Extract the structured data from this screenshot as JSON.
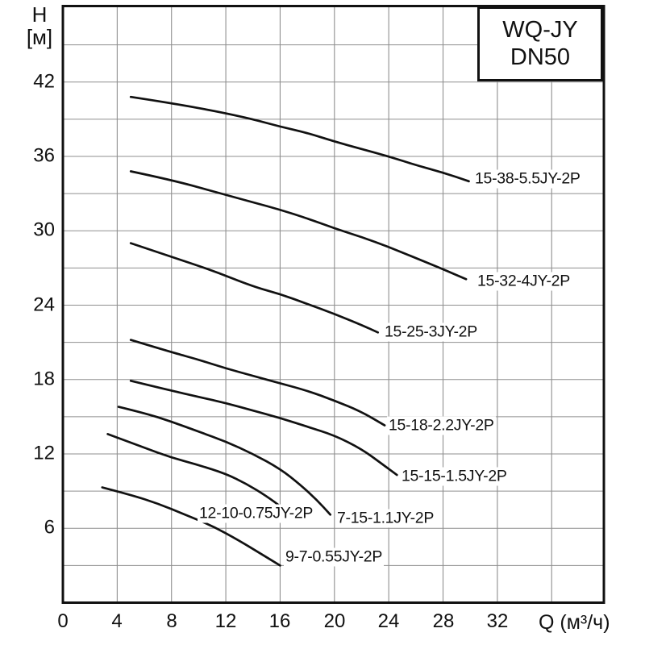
{
  "title_box": {
    "line1": "WQ-JY",
    "line2": "DN50"
  },
  "y_axis": {
    "symbol": "H",
    "unit": "[м]"
  },
  "x_axis": {
    "unit_label": "Q (м³/ч)"
  },
  "colors": {
    "background": "#ffffff",
    "curve": "#111111",
    "frame": "#111111",
    "grid": "#8f8f8f",
    "text": "#111111"
  },
  "chart_data": {
    "type": "line",
    "title": "WQ-JY DN50",
    "xlabel": "Q (м³/ч)",
    "ylabel": "H [м]",
    "xlim": [
      0,
      39.9
    ],
    "ylim": [
      0,
      48.1
    ],
    "x_tick_labels": [
      0,
      4,
      8,
      12,
      16,
      20,
      24,
      28,
      32
    ],
    "y_tick_labels": [
      42,
      36,
      30,
      24,
      18,
      12,
      6
    ],
    "x_grid_step": 4,
    "y_grid_step": 3,
    "grid": true,
    "legend_position": "inline-labels",
    "series": [
      {
        "name": "15-38-5.5JY-2P",
        "points": [
          [
            5.0,
            40.8
          ],
          [
            8,
            40.3
          ],
          [
            11.5,
            39.6
          ],
          [
            14,
            39.0
          ],
          [
            16,
            38.4
          ],
          [
            18,
            37.9
          ],
          [
            20,
            37.2
          ],
          [
            22,
            36.6
          ],
          [
            24,
            36.0
          ],
          [
            26,
            35.3
          ],
          [
            28,
            34.7
          ],
          [
            29.9,
            34.0
          ]
        ],
        "label_anchor": {
          "q": 30.2,
          "h": 34.2
        }
      },
      {
        "name": "15-32-4JY-2P",
        "points": [
          [
            5.0,
            34.8
          ],
          [
            8,
            34.1
          ],
          [
            11,
            33.2
          ],
          [
            14,
            32.3
          ],
          [
            16,
            31.7
          ],
          [
            18,
            31.0
          ],
          [
            20,
            30.2
          ],
          [
            22,
            29.5
          ],
          [
            24,
            28.7
          ],
          [
            26,
            27.8
          ],
          [
            28,
            26.9
          ],
          [
            29.7,
            26.1
          ]
        ],
        "label_anchor": {
          "q": 30.4,
          "h": 25.9
        }
      },
      {
        "name": "15-25-3JY-2P",
        "points": [
          [
            5.0,
            29.0
          ],
          [
            8,
            27.9
          ],
          [
            11,
            26.8
          ],
          [
            14,
            25.5
          ],
          [
            16,
            24.9
          ],
          [
            18,
            24.1
          ],
          [
            20,
            23.3
          ],
          [
            22,
            22.4
          ],
          [
            23.2,
            21.8
          ]
        ],
        "label_anchor": {
          "q": 23.6,
          "h": 21.8
        }
      },
      {
        "name": "15-18-2.2JY-2P",
        "points": [
          [
            5.0,
            21.2
          ],
          [
            8,
            20.2
          ],
          [
            10,
            19.6
          ],
          [
            12,
            18.9
          ],
          [
            14,
            18.3
          ],
          [
            16,
            17.7
          ],
          [
            18,
            17.1
          ],
          [
            20,
            16.3
          ],
          [
            22,
            15.4
          ],
          [
            23.7,
            14.3
          ]
        ],
        "label_anchor": {
          "q": 23.9,
          "h": 14.3
        }
      },
      {
        "name": "15-15-1.5JY-2P",
        "points": [
          [
            5.0,
            17.9
          ],
          [
            8,
            17.1
          ],
          [
            10,
            16.6
          ],
          [
            12,
            16.1
          ],
          [
            14,
            15.5
          ],
          [
            16,
            14.9
          ],
          [
            18,
            14.2
          ],
          [
            20,
            13.5
          ],
          [
            22,
            12.4
          ],
          [
            23.5,
            11.2
          ],
          [
            24.6,
            10.3
          ]
        ],
        "label_anchor": {
          "q": 24.8,
          "h": 10.2
        }
      },
      {
        "name": "7-15-1.1JY-2P",
        "points": [
          [
            4.1,
            15.8
          ],
          [
            6,
            15.3
          ],
          [
            8,
            14.6
          ],
          [
            10,
            13.8
          ],
          [
            12,
            13.0
          ],
          [
            14,
            12.0
          ],
          [
            16,
            10.8
          ],
          [
            17.5,
            9.5
          ],
          [
            18.7,
            8.3
          ],
          [
            19.7,
            7.1
          ]
        ],
        "label_anchor": {
          "q": 20.1,
          "h": 6.8
        }
      },
      {
        "name": "12-10-0.75JY-2P",
        "points": [
          [
            3.3,
            13.6
          ],
          [
            6,
            12.5
          ],
          [
            8,
            11.7
          ],
          [
            10,
            11.1
          ],
          [
            12,
            10.4
          ],
          [
            13.5,
            9.6
          ],
          [
            15,
            8.6
          ],
          [
            16.1,
            7.7
          ]
        ],
        "label_anchor": {
          "q": 9.9,
          "h": 7.2
        }
      },
      {
        "name": "9-7-0.55JY-2P",
        "points": [
          [
            2.9,
            9.3
          ],
          [
            5,
            8.7
          ],
          [
            7,
            8.0
          ],
          [
            9,
            7.1
          ],
          [
            11,
            6.2
          ],
          [
            13,
            5.0
          ],
          [
            14.5,
            4.0
          ],
          [
            16,
            3.0
          ]
        ],
        "label_anchor": {
          "q": 16.3,
          "h": 3.7
        }
      }
    ]
  }
}
